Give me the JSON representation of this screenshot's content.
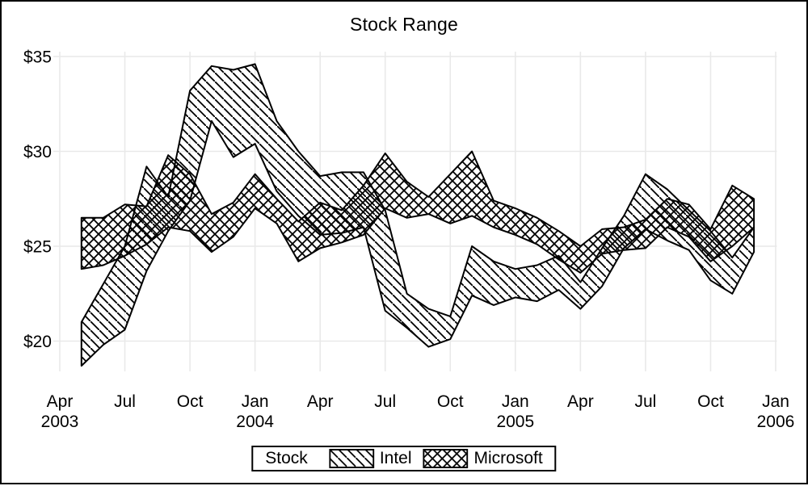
{
  "colors": {
    "stroke": "#000000",
    "grid": "#e9e9e9",
    "background": "#ffffff",
    "text": "#000000"
  },
  "chart_data": {
    "type": "area",
    "subtype": "high-low-range-band",
    "title": "Stock Range",
    "xlabel": "",
    "ylabel": "",
    "grid": true,
    "legend": {
      "label": "Stock",
      "position": "bottom-center",
      "entries": [
        "Intel",
        "Microsoft"
      ]
    },
    "y_ticks": [
      35,
      30,
      25,
      20
    ],
    "y_tick_labels": [
      "$35",
      "$30",
      "$25",
      "$20"
    ],
    "ylim": [
      18.4,
      35.3
    ],
    "x_tick_labels": [
      [
        "Apr",
        "2003"
      ],
      [
        "Jul"
      ],
      [
        "Oct"
      ],
      [
        "Jan",
        "2004"
      ],
      [
        "Apr"
      ],
      [
        "Jul"
      ],
      [
        "Oct"
      ],
      [
        "Jan",
        "2005"
      ],
      [
        "Apr"
      ],
      [
        "Jul"
      ],
      [
        "Oct"
      ],
      [
        "Jan",
        "2006"
      ]
    ],
    "months": [
      "May 2003",
      "Jun 2003",
      "Jul 2003",
      "Aug 2003",
      "Sep 2003",
      "Oct 2003",
      "Nov 2003",
      "Dec 2003",
      "Jan 2004",
      "Feb 2004",
      "Mar 2004",
      "Apr 2004",
      "May 2004",
      "Jun 2004",
      "Jul 2004",
      "Aug 2004",
      "Sep 2004",
      "Oct 2004",
      "Nov 2004",
      "Dec 2004",
      "Jan 2005",
      "Feb 2005",
      "Mar 2005",
      "Apr 2005",
      "May 2005",
      "Jun 2005",
      "Jul 2005",
      "Aug 2005",
      "Sep 2005",
      "Oct 2005",
      "Nov 2005",
      "Dec 2005"
    ],
    "series": [
      {
        "name": "Intel",
        "hatch": "diagonal",
        "low": [
          18.7,
          19.8,
          20.6,
          23.7,
          25.8,
          27.4,
          31.6,
          29.7,
          30.4,
          27.9,
          26.6,
          25.6,
          25.7,
          26.0,
          21.6,
          20.7,
          19.7,
          20.1,
          22.4,
          21.9,
          22.3,
          22.1,
          22.7,
          21.7,
          22.9,
          24.9,
          25.9,
          25.3,
          24.8,
          23.2,
          22.5,
          24.7
        ],
        "high": [
          21.0,
          23.0,
          25.0,
          29.2,
          27.6,
          33.2,
          34.5,
          34.3,
          34.6,
          31.6,
          30.0,
          28.7,
          28.9,
          28.9,
          26.9,
          22.5,
          21.7,
          21.3,
          25.0,
          24.2,
          23.8,
          24.0,
          24.5,
          23.1,
          24.9,
          26.6,
          28.8,
          28.0,
          26.9,
          25.8,
          24.4,
          26.0
        ]
      },
      {
        "name": "Microsoft",
        "hatch": "cross",
        "low": [
          23.8,
          24.0,
          24.5,
          25.1,
          26.0,
          25.8,
          24.7,
          25.5,
          27.0,
          26.2,
          24.2,
          24.9,
          25.2,
          25.6,
          27.0,
          26.5,
          26.7,
          26.2,
          26.6,
          26.0,
          25.6,
          25.1,
          24.3,
          23.6,
          24.6,
          24.8,
          24.9,
          26.0,
          25.5,
          24.2,
          25.0,
          26.0
        ],
        "high": [
          26.5,
          26.5,
          27.2,
          27.1,
          29.8,
          28.8,
          26.7,
          27.3,
          28.8,
          27.5,
          26.3,
          27.3,
          26.9,
          28.2,
          29.9,
          28.4,
          27.6,
          28.8,
          30.0,
          27.4,
          27.0,
          26.5,
          25.8,
          25.0,
          25.9,
          26.0,
          26.4,
          27.5,
          27.2,
          25.9,
          28.2,
          27.5
        ]
      }
    ]
  }
}
